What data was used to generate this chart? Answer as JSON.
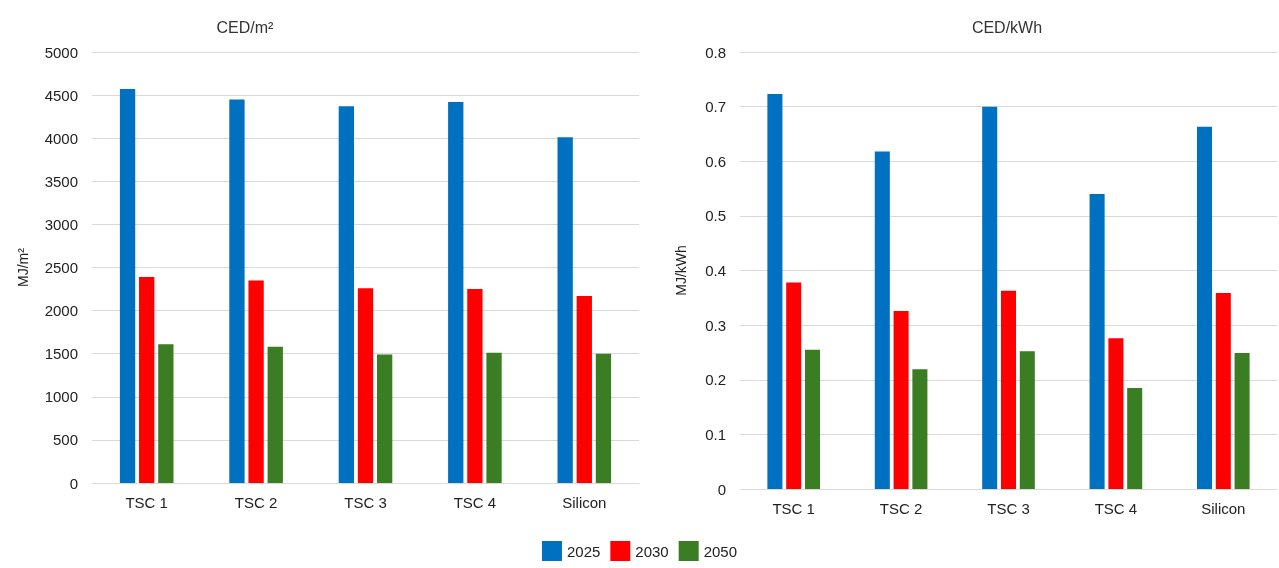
{
  "chart_data": [
    {
      "type": "bar",
      "title": "CED/m²",
      "ylabel": "MJ/m²",
      "categories": [
        "TSC 1",
        "TSC 2",
        "TSC 3",
        "TSC 4",
        "Silicon"
      ],
      "series": [
        {
          "name": "2025",
          "color": "#0070c0",
          "values": [
            4570,
            4450,
            4370,
            4420,
            4010
          ]
        },
        {
          "name": "2030",
          "color": "#ff0000",
          "values": [
            2390,
            2350,
            2260,
            2250,
            2170
          ]
        },
        {
          "name": "2050",
          "color": "#3a7d22",
          "values": [
            1610,
            1580,
            1490,
            1510,
            1500
          ]
        }
      ],
      "ylim": [
        0,
        5000
      ],
      "yticks": [
        0,
        500,
        1000,
        1500,
        2000,
        2500,
        3000,
        3500,
        4000,
        4500,
        5000
      ],
      "grid": "y",
      "legend": "bottom"
    },
    {
      "type": "bar",
      "title": "CED/kWh",
      "ylabel": "MJ/kWh",
      "categories": [
        "TSC 1",
        "TSC 2",
        "TSC 3",
        "TSC 4",
        "Silicon"
      ],
      "series": [
        {
          "name": "2025",
          "color": "#0070c0",
          "values": [
            0.723,
            0.618,
            0.7,
            0.54,
            0.663
          ]
        },
        {
          "name": "2030",
          "color": "#ff0000",
          "values": [
            0.378,
            0.326,
            0.363,
            0.276,
            0.359
          ]
        },
        {
          "name": "2050",
          "color": "#3a7d22",
          "values": [
            0.255,
            0.219,
            0.252,
            0.185,
            0.249
          ]
        }
      ],
      "ylim": [
        0,
        0.8
      ],
      "yticks": [
        0,
        0.1,
        0.2,
        0.3,
        0.4,
        0.5,
        0.6,
        0.7,
        0.8
      ],
      "grid": "y",
      "legend": "bottom"
    }
  ]
}
